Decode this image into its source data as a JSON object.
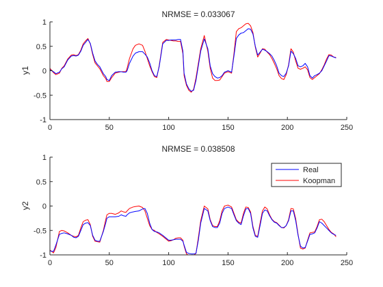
{
  "figure": {
    "background": "#ffffff",
    "axes_color": "#262626"
  },
  "chart_data": [
    {
      "type": "line",
      "title": "NRMSE = 0.033067",
      "xlabel": "",
      "ylabel": "y1",
      "xlim": [
        0,
        250
      ],
      "ylim": [
        -1,
        1
      ],
      "xticks": [
        0,
        50,
        100,
        150,
        200,
        250
      ],
      "yticks": [
        -1,
        -0.5,
        0,
        0.5,
        1
      ],
      "xtick_labels": [
        "0",
        "50",
        "100",
        "150",
        "200",
        "250"
      ],
      "ytick_labels": [
        "-1",
        "-0.5",
        "0",
        "0.5",
        "1"
      ],
      "grid": false,
      "legend": null,
      "series": [
        {
          "color": "#0000ff",
          "x": [
            0,
            3,
            5,
            8,
            10,
            12,
            15,
            18,
            20,
            22,
            24,
            26,
            28,
            30,
            32,
            34,
            36,
            38,
            40,
            42,
            45,
            47,
            48,
            50,
            52,
            55,
            58,
            60,
            62,
            64,
            65,
            67,
            70,
            72,
            75,
            78,
            80,
            82,
            84,
            86,
            88,
            90,
            92,
            95,
            98,
            100,
            102,
            104,
            106,
            108,
            110,
            112,
            113,
            115,
            117,
            119,
            121,
            123,
            125,
            127,
            130,
            133,
            135,
            137,
            139,
            141,
            143,
            145,
            147,
            150,
            153,
            155,
            157,
            159,
            161,
            163,
            165,
            167,
            169,
            171,
            173,
            175,
            177,
            179,
            181,
            183,
            185,
            187,
            189,
            191,
            193,
            195,
            197,
            199,
            201,
            203,
            205,
            207,
            209,
            211,
            213,
            215,
            217,
            219,
            221,
            223,
            225,
            227,
            229,
            231,
            233,
            235,
            237,
            239,
            241
          ],
          "y": [
            0.02,
            -0.02,
            -0.06,
            -0.03,
            0.04,
            0.08,
            0.22,
            0.3,
            0.31,
            0.3,
            0.32,
            0.4,
            0.52,
            0.58,
            0.64,
            0.56,
            0.36,
            0.2,
            0.13,
            0.08,
            -0.06,
            -0.12,
            -0.18,
            -0.2,
            -0.1,
            -0.03,
            -0.02,
            -0.02,
            -0.03,
            -0.03,
            0.0,
            0.15,
            0.3,
            0.36,
            0.39,
            0.39,
            0.34,
            0.28,
            0.16,
            0.0,
            -0.1,
            -0.12,
            0.08,
            0.55,
            0.62,
            0.62,
            0.63,
            0.63,
            0.63,
            0.64,
            0.64,
            0.4,
            -0.05,
            -0.27,
            -0.37,
            -0.42,
            -0.4,
            -0.2,
            0.1,
            0.4,
            0.65,
            0.45,
            0.1,
            -0.06,
            -0.12,
            -0.15,
            -0.14,
            -0.1,
            -0.03,
            0.0,
            -0.03,
            0.3,
            0.66,
            0.73,
            0.77,
            0.78,
            0.82,
            0.86,
            0.85,
            0.75,
            0.5,
            0.32,
            0.38,
            0.44,
            0.42,
            0.39,
            0.35,
            0.3,
            0.21,
            0.1,
            -0.05,
            -0.1,
            -0.12,
            -0.05,
            0.1,
            0.4,
            0.35,
            0.25,
            0.1,
            0.08,
            0.1,
            0.15,
            0.08,
            -0.1,
            -0.15,
            -0.1,
            -0.08,
            -0.05,
            0.0,
            0.1,
            0.2,
            0.31,
            0.3,
            0.28,
            0.26
          ]
        },
        {
          "color": "#ff0000",
          "x": [
            0,
            3,
            5,
            8,
            10,
            12,
            15,
            18,
            20,
            22,
            24,
            26,
            28,
            30,
            32,
            34,
            36,
            38,
            40,
            42,
            45,
            47,
            48,
            50,
            52,
            55,
            58,
            60,
            62,
            64,
            65,
            67,
            70,
            72,
            75,
            78,
            80,
            82,
            84,
            86,
            88,
            90,
            92,
            95,
            98,
            100,
            102,
            104,
            106,
            108,
            110,
            112,
            113,
            115,
            117,
            119,
            121,
            123,
            125,
            127,
            130,
            133,
            135,
            137,
            139,
            141,
            143,
            145,
            147,
            150,
            153,
            155,
            157,
            159,
            161,
            163,
            165,
            167,
            169,
            171,
            173,
            175,
            177,
            179,
            181,
            183,
            185,
            187,
            189,
            191,
            193,
            195,
            197,
            199,
            201,
            203,
            205,
            207,
            209,
            211,
            213,
            215,
            217,
            219,
            221,
            223,
            225,
            227,
            229,
            231,
            233,
            235,
            237,
            239,
            241
          ],
          "y": [
            0.05,
            -0.04,
            -0.08,
            -0.05,
            0.05,
            0.1,
            0.24,
            0.32,
            0.33,
            0.31,
            0.33,
            0.42,
            0.55,
            0.61,
            0.66,
            0.55,
            0.33,
            0.16,
            0.1,
            0.04,
            -0.1,
            -0.16,
            -0.22,
            -0.22,
            -0.14,
            -0.05,
            -0.03,
            -0.02,
            -0.02,
            -0.02,
            0.05,
            0.25,
            0.45,
            0.52,
            0.55,
            0.52,
            0.4,
            0.25,
            0.1,
            -0.02,
            -0.12,
            -0.14,
            0.1,
            0.58,
            0.64,
            0.63,
            0.62,
            0.61,
            0.61,
            0.6,
            0.6,
            0.35,
            -0.1,
            -0.3,
            -0.4,
            -0.44,
            -0.38,
            -0.15,
            0.15,
            0.45,
            0.72,
            0.4,
            0.05,
            -0.15,
            -0.2,
            -0.2,
            -0.19,
            -0.12,
            -0.05,
            -0.02,
            -0.05,
            0.35,
            0.8,
            0.86,
            0.88,
            0.92,
            0.96,
            0.97,
            0.92,
            0.78,
            0.48,
            0.28,
            0.36,
            0.45,
            0.44,
            0.38,
            0.33,
            0.25,
            0.15,
            0.04,
            -0.1,
            -0.16,
            -0.18,
            -0.08,
            0.12,
            0.45,
            0.38,
            0.2,
            0.05,
            0.03,
            0.05,
            0.08,
            0.02,
            -0.14,
            -0.18,
            -0.14,
            -0.1,
            -0.06,
            0.02,
            0.12,
            0.24,
            0.33,
            0.32,
            0.28,
            0.27
          ]
        }
      ]
    },
    {
      "type": "line",
      "title": "NRMSE = 0.038508",
      "xlabel": "",
      "ylabel": "y2",
      "xlim": [
        0,
        250
      ],
      "ylim": [
        -1,
        1
      ],
      "xticks": [
        0,
        50,
        100,
        150,
        200,
        250
      ],
      "yticks": [
        -1,
        -0.5,
        0,
        0.5,
        1
      ],
      "xtick_labels": [
        "0",
        "50",
        "100",
        "150",
        "200",
        "250"
      ],
      "ytick_labels": [
        "-1",
        "-0.5",
        "0",
        "0.5",
        "1"
      ],
      "grid": false,
      "legend": {
        "position": "top-right",
        "entries": [
          "Real",
          "Koopman"
        ]
      },
      "series": [
        {
          "name": "Real",
          "color": "#0000ff",
          "x": [
            0,
            3,
            5,
            8,
            10,
            12,
            15,
            18,
            20,
            22,
            24,
            26,
            28,
            30,
            32,
            34,
            36,
            38,
            40,
            42,
            45,
            47,
            48,
            50,
            52,
            55,
            58,
            60,
            62,
            64,
            65,
            67,
            70,
            72,
            75,
            78,
            80,
            82,
            84,
            86,
            88,
            90,
            92,
            95,
            98,
            100,
            102,
            104,
            106,
            108,
            110,
            112,
            113,
            115,
            117,
            119,
            121,
            123,
            125,
            127,
            130,
            133,
            135,
            137,
            139,
            141,
            143,
            145,
            147,
            150,
            153,
            155,
            157,
            159,
            161,
            163,
            165,
            167,
            169,
            171,
            173,
            175,
            177,
            179,
            181,
            183,
            185,
            187,
            189,
            191,
            193,
            195,
            197,
            199,
            201,
            203,
            205,
            207,
            209,
            211,
            213,
            215,
            217,
            219,
            221,
            223,
            225,
            227,
            229,
            231,
            233,
            235,
            237,
            239,
            241
          ],
          "y": [
            -0.92,
            -0.93,
            -0.8,
            -0.58,
            -0.56,
            -0.55,
            -0.57,
            -0.6,
            -0.64,
            -0.65,
            -0.62,
            -0.5,
            -0.38,
            -0.35,
            -0.34,
            -0.4,
            -0.6,
            -0.7,
            -0.72,
            -0.72,
            -0.52,
            -0.35,
            -0.25,
            -0.22,
            -0.22,
            -0.22,
            -0.21,
            -0.18,
            -0.2,
            -0.21,
            -0.18,
            -0.14,
            -0.12,
            -0.11,
            -0.1,
            -0.06,
            -0.05,
            -0.15,
            -0.35,
            -0.48,
            -0.52,
            -0.53,
            -0.55,
            -0.6,
            -0.66,
            -0.7,
            -0.7,
            -0.69,
            -0.68,
            -0.68,
            -0.68,
            -0.72,
            -0.8,
            -0.95,
            -0.97,
            -0.98,
            -0.98,
            -0.97,
            -0.7,
            -0.35,
            -0.05,
            -0.1,
            -0.3,
            -0.42,
            -0.44,
            -0.44,
            -0.35,
            -0.15,
            -0.05,
            -0.02,
            -0.05,
            -0.18,
            -0.3,
            -0.35,
            -0.38,
            -0.2,
            -0.06,
            -0.05,
            -0.15,
            -0.45,
            -0.62,
            -0.64,
            -0.4,
            -0.15,
            -0.08,
            -0.1,
            -0.2,
            -0.28,
            -0.33,
            -0.35,
            -0.4,
            -0.44,
            -0.44,
            -0.4,
            -0.3,
            -0.1,
            -0.1,
            -0.3,
            -0.6,
            -0.82,
            -0.86,
            -0.85,
            -0.72,
            -0.58,
            -0.57,
            -0.55,
            -0.45,
            -0.32,
            -0.35,
            -0.4,
            -0.45,
            -0.5,
            -0.55,
            -0.58,
            -0.6
          ]
        },
        {
          "name": "Koopman",
          "color": "#ff0000",
          "x": [
            0,
            3,
            5,
            8,
            10,
            12,
            15,
            18,
            20,
            22,
            24,
            26,
            28,
            30,
            32,
            34,
            36,
            38,
            40,
            42,
            45,
            47,
            48,
            50,
            52,
            55,
            58,
            60,
            62,
            64,
            65,
            67,
            70,
            72,
            75,
            78,
            80,
            82,
            84,
            86,
            88,
            90,
            92,
            95,
            98,
            100,
            102,
            104,
            106,
            108,
            110,
            112,
            113,
            115,
            117,
            119,
            121,
            123,
            125,
            127,
            130,
            133,
            135,
            137,
            139,
            141,
            143,
            145,
            147,
            150,
            153,
            155,
            157,
            159,
            161,
            163,
            165,
            167,
            169,
            171,
            173,
            175,
            177,
            179,
            181,
            183,
            185,
            187,
            189,
            191,
            193,
            195,
            197,
            199,
            201,
            203,
            205,
            207,
            209,
            211,
            213,
            215,
            217,
            219,
            221,
            223,
            225,
            227,
            229,
            231,
            233,
            235,
            237,
            239,
            241
          ],
          "y": [
            -0.9,
            -0.96,
            -0.85,
            -0.52,
            -0.5,
            -0.51,
            -0.55,
            -0.6,
            -0.62,
            -0.63,
            -0.6,
            -0.45,
            -0.32,
            -0.29,
            -0.28,
            -0.38,
            -0.62,
            -0.72,
            -0.73,
            -0.74,
            -0.5,
            -0.28,
            -0.18,
            -0.15,
            -0.15,
            -0.17,
            -0.14,
            -0.1,
            -0.12,
            -0.13,
            -0.1,
            -0.05,
            -0.02,
            -0.01,
            0.0,
            -0.03,
            -0.1,
            -0.25,
            -0.4,
            -0.48,
            -0.5,
            -0.54,
            -0.57,
            -0.62,
            -0.68,
            -0.72,
            -0.71,
            -0.69,
            -0.66,
            -0.65,
            -0.65,
            -0.7,
            -0.82,
            -0.98,
            -1.01,
            -1.02,
            -1.01,
            -0.97,
            -0.65,
            -0.3,
            0.0,
            -0.06,
            -0.28,
            -0.4,
            -0.42,
            -0.42,
            -0.3,
            -0.1,
            0.0,
            0.02,
            -0.02,
            -0.15,
            -0.28,
            -0.33,
            -0.35,
            -0.15,
            -0.02,
            -0.03,
            -0.12,
            -0.42,
            -0.6,
            -0.62,
            -0.35,
            -0.1,
            -0.02,
            -0.06,
            -0.18,
            -0.27,
            -0.32,
            -0.34,
            -0.39,
            -0.44,
            -0.45,
            -0.4,
            -0.28,
            -0.05,
            -0.06,
            -0.26,
            -0.58,
            -0.86,
            -0.88,
            -0.86,
            -0.7,
            -0.55,
            -0.54,
            -0.53,
            -0.42,
            -0.28,
            -0.27,
            -0.32,
            -0.4,
            -0.48,
            -0.54,
            -0.57,
            -0.63
          ]
        }
      ]
    }
  ]
}
